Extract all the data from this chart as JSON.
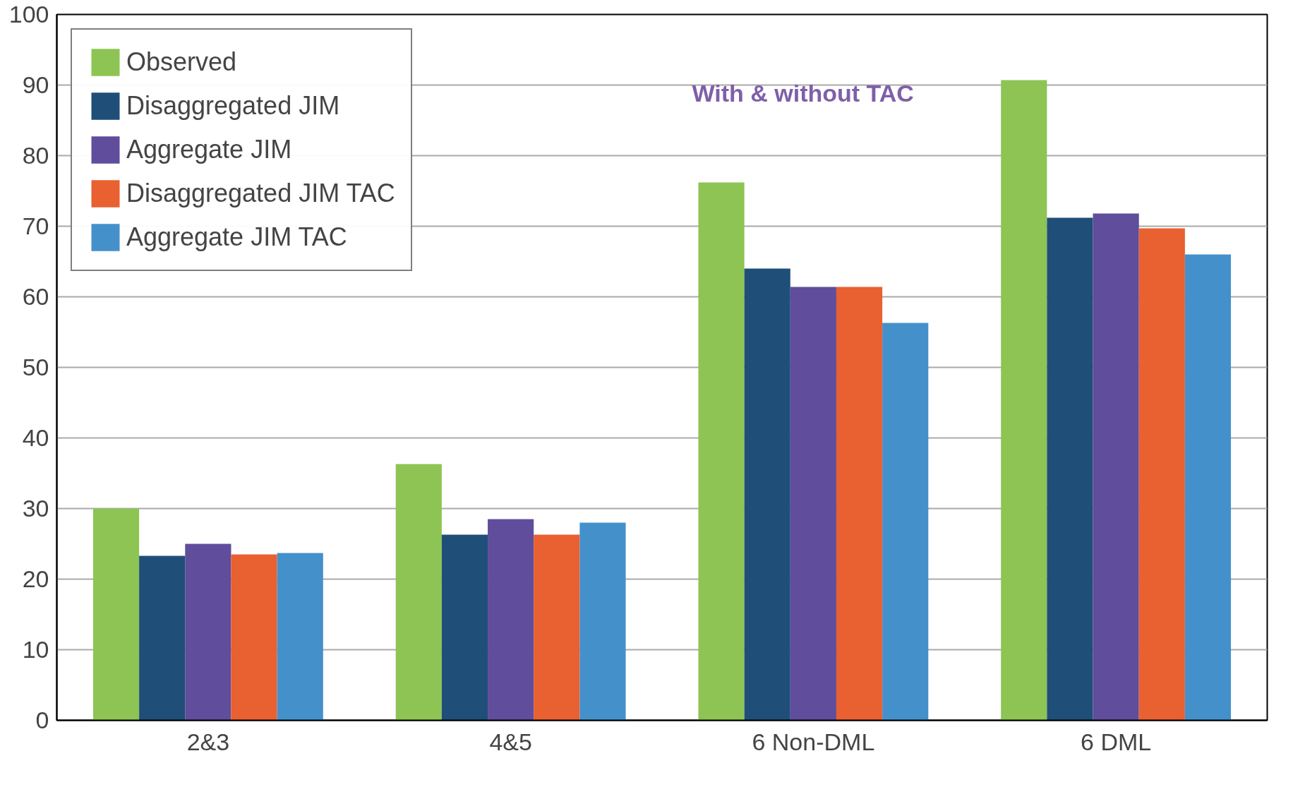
{
  "chart_data": {
    "type": "bar",
    "categories": [
      "2&3",
      "4&5",
      "6 Non-DML",
      "6 DML"
    ],
    "series": [
      {
        "name": "Observed",
        "color": "#8dc453",
        "values": [
          30,
          36.3,
          76.2,
          90.7
        ]
      },
      {
        "name": "Disaggregated JIM",
        "color": "#1f4e79",
        "values": [
          23.3,
          26.3,
          64,
          71.2
        ]
      },
      {
        "name": "Aggregate JIM",
        "color": "#604d9b",
        "values": [
          25,
          28.5,
          61.4,
          71.8
        ]
      },
      {
        "name": "Disaggregated JIM TAC",
        "color": "#e96031",
        "values": [
          23.5,
          26.3,
          61.4,
          69.7
        ]
      },
      {
        "name": "Aggregate JIM TAC",
        "color": "#4490cb",
        "values": [
          23.7,
          28,
          56.3,
          66
        ]
      }
    ],
    "ylim": [
      0,
      100
    ],
    "yticks": [
      0,
      10,
      20,
      30,
      40,
      50,
      60,
      70,
      80,
      90,
      100
    ],
    "grid": "y",
    "legend": "top left",
    "annotations": [
      "With & without TAC"
    ]
  }
}
